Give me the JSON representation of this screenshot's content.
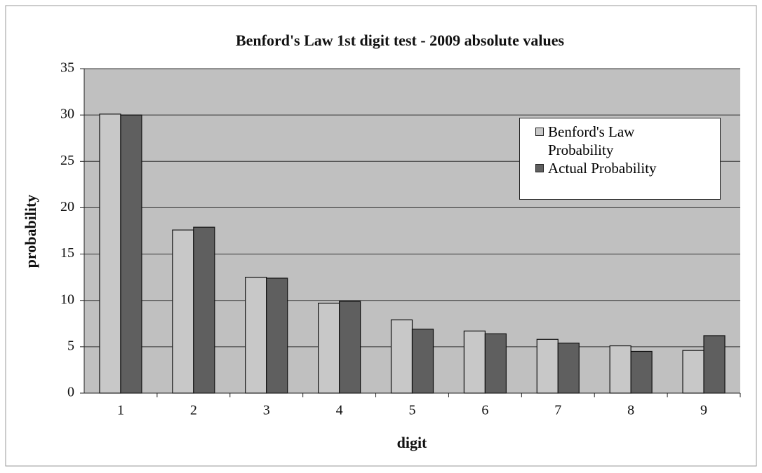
{
  "chart_data": {
    "type": "bar",
    "title": "Benford's Law 1st digit test - 2009 absolute values",
    "x_label": "digit",
    "y_label": "probability",
    "categories": [
      "1",
      "2",
      "3",
      "4",
      "5",
      "6",
      "7",
      "8",
      "9"
    ],
    "series": [
      {
        "name": "Benford's Law Probability",
        "color": "#c8c8c8",
        "values": [
          30.1,
          17.6,
          12.5,
          9.7,
          7.9,
          6.7,
          5.8,
          5.1,
          4.6
        ]
      },
      {
        "name": "Actual Probability",
        "color": "#5f5f5f",
        "values": [
          30.0,
          17.9,
          12.4,
          9.9,
          6.9,
          6.4,
          5.4,
          4.5,
          6.2
        ]
      }
    ],
    "ylim": [
      0,
      35
    ],
    "yticks": [
      0,
      5,
      10,
      15,
      20,
      25,
      30,
      35
    ],
    "grid": true,
    "legend": "upper right"
  }
}
